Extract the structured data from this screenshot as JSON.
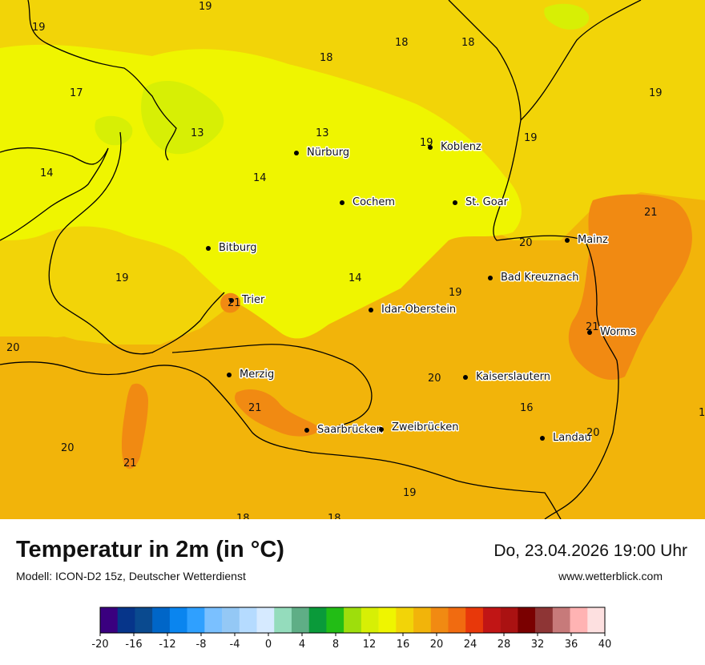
{
  "title": "Temperatur in 2m (in °C)",
  "model": "Modell: ICON-D2 15z, Deutscher Wetterdienst",
  "datetime": "Do, 23.04.2026 19:00 Uhr",
  "website": "www.wetterblick.com",
  "cities": [
    {
      "name": "Nürburg"
    },
    {
      "name": "Koblenz"
    },
    {
      "name": "Cochem"
    },
    {
      "name": "St. Goar"
    },
    {
      "name": "Mainz"
    },
    {
      "name": "Bitburg"
    },
    {
      "name": "Bad Kreuznach"
    },
    {
      "name": "Trier"
    },
    {
      "name": "Idar-Oberstein"
    },
    {
      "name": "Worms"
    },
    {
      "name": "Merzig"
    },
    {
      "name": "Kaiserslautern"
    },
    {
      "name": "Saarbrücken"
    },
    {
      "name": "Zweibrücken"
    },
    {
      "name": "Landau"
    }
  ],
  "temperature_labels": [
    "19",
    "19",
    "18",
    "18",
    "18",
    "17",
    "19",
    "13",
    "13",
    "19",
    "19",
    "14",
    "14",
    "21",
    "20",
    "19",
    "14",
    "19",
    "21",
    "21",
    "20",
    "20",
    "21",
    "16",
    "20",
    "1",
    "20",
    "21",
    "19",
    "18",
    "18"
  ],
  "color_scale": {
    "colors": [
      "#3a007f",
      "#06358a",
      "#0a4a8f",
      "#0066c8",
      "#0a85ef",
      "#2fa0ff",
      "#7ac0ff",
      "#94c8f5",
      "#b5dbff",
      "#d6eaff",
      "#94dcbc",
      "#5fae86",
      "#0a9a3a",
      "#22bd15",
      "#9ede0c",
      "#d7ef05",
      "#eff500",
      "#f2d408",
      "#f2b40a",
      "#f18a12",
      "#f16b10",
      "#e8380a",
      "#c11515",
      "#aa1212",
      "#7a0000",
      "#8e3535",
      "#c77a7a",
      "#ffb3b3",
      "#fde0e0"
    ],
    "tick_labels": [
      "-20",
      "-16",
      "-12",
      "-8",
      "-4",
      "0",
      "4",
      "8",
      "12",
      "16",
      "20",
      "24",
      "28",
      "32",
      "36",
      "40"
    ]
  }
}
